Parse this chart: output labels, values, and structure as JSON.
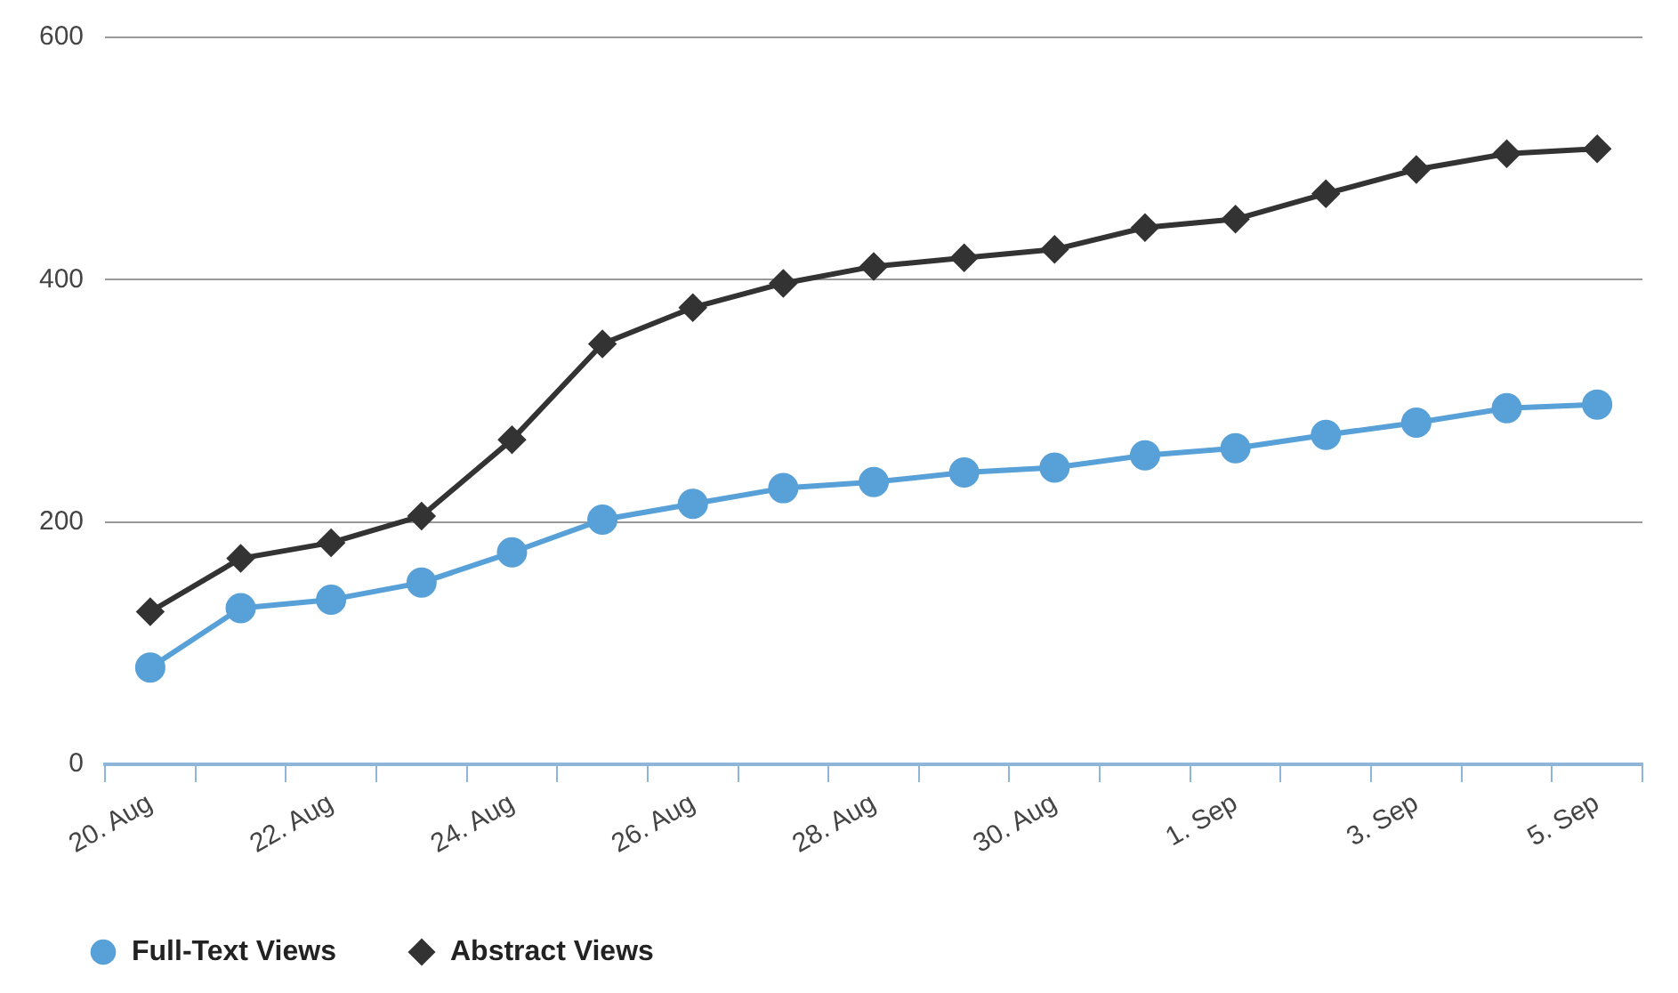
{
  "chart_data": {
    "type": "line",
    "categories": [
      "20. Aug",
      null,
      "22. Aug",
      null,
      "24. Aug",
      null,
      "26. Aug",
      null,
      "28. Aug",
      null,
      "30. Aug",
      null,
      "1. Sep",
      null,
      "3. Sep",
      null,
      "5. Sep"
    ],
    "series": [
      {
        "name": "Full-Text Views",
        "color": "#57a0d8",
        "marker": "circle",
        "values": [
          80,
          129,
          136,
          150,
          175,
          202,
          215,
          228,
          233,
          241,
          245,
          255,
          261,
          272,
          282,
          294,
          297
        ]
      },
      {
        "name": "Abstract Views",
        "color": "#333333",
        "marker": "diamond",
        "values": [
          126,
          170,
          183,
          205,
          268,
          347,
          377,
          397,
          411,
          418,
          425,
          443,
          450,
          471,
          491,
          504,
          508
        ]
      }
    ],
    "ylim": [
      0,
      600
    ],
    "yticks": [
      0,
      200,
      400,
      600
    ],
    "grid": "y",
    "legend": "bottom left",
    "line_style": "solid"
  }
}
